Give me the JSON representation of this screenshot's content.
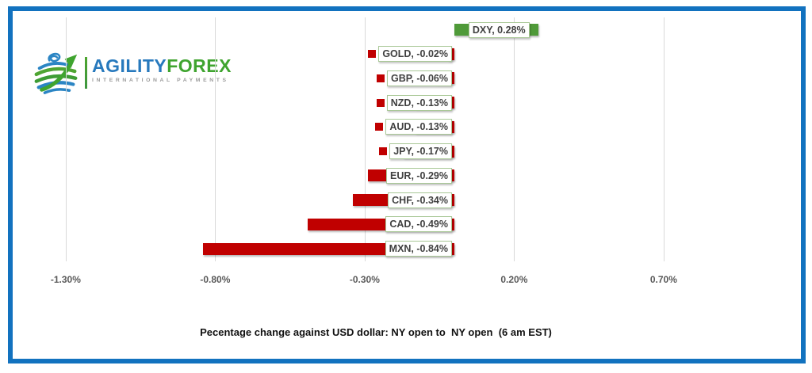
{
  "logo": {
    "brand_primary": "AGILITY",
    "brand_secondary": "FOREX",
    "tagline": "INTERNATIONAL PAYMENTS",
    "colors": {
      "primary_blue": "#2779BD",
      "secondary_green": "#3FA42F",
      "tagline_gray": "#9B9B9B"
    }
  },
  "chart_data": {
    "type": "bar",
    "orientation": "horizontal",
    "title": "Pecentage change against USD dollar: NY open to  NY open  (6 am EST)",
    "categories": [
      "DXY",
      "GOLD",
      "GBP",
      "NZD",
      "AUD",
      "JPY",
      "EUR",
      "CHF",
      "CAD",
      "MXN"
    ],
    "values": [
      0.28,
      -0.02,
      -0.06,
      -0.13,
      -0.13,
      -0.17,
      -0.29,
      -0.34,
      -0.49,
      -0.84
    ],
    "labels": [
      "DXY, 0.28%",
      "GOLD, -0.02%",
      "GBP, -0.06%",
      "NZD, -0.13%",
      "AUD, -0.13%",
      "JPY, -0.17%",
      "EUR, -0.29%",
      "CHF, -0.34%",
      "CAD, -0.49%",
      "MXN, -0.84%"
    ],
    "x_ticks": [
      "-1.30%",
      "-0.80%",
      "-0.30%",
      "0.20%",
      "0.70%"
    ],
    "x_tick_values": [
      -1.3,
      -0.8,
      -0.3,
      0.2,
      0.7
    ],
    "xlim": [
      -1.55,
      0.95
    ],
    "grid": "vertical",
    "data_labels": "shown with legend keys",
    "colors": {
      "positive": "#4F9A39",
      "negative": "#C00000",
      "label_border": "#A9C897",
      "label_text": "#404040",
      "tick_text": "#595959",
      "gridline": "#D9D9D9",
      "frame": "#1272BF"
    }
  }
}
